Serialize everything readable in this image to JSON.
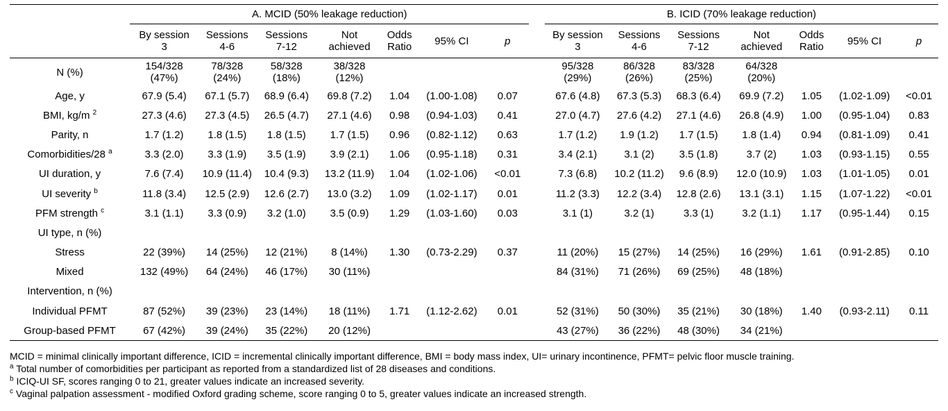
{
  "groups": {
    "a": "A. MCID (50% leakage reduction)",
    "b": "B. ICID (70% leakage reduction)"
  },
  "col_headers": {
    "c1": [
      "By session",
      "3"
    ],
    "c2": [
      "Sessions",
      "4-6"
    ],
    "c3": [
      "Sessions",
      "7-12"
    ],
    "c4": [
      "Not",
      "achieved"
    ],
    "or": [
      "Odds",
      "Ratio"
    ],
    "ci": "95% CI",
    "p": "p"
  },
  "rows": {
    "n": {
      "label": "N (%)",
      "a": [
        [
          "154/328",
          "(47%)"
        ],
        [
          "78/328",
          "(24%)"
        ],
        [
          "58/328",
          "(18%)"
        ],
        [
          "38/328",
          "(12%)"
        ]
      ],
      "b": [
        [
          "95/328",
          "(29%)"
        ],
        [
          "86/328",
          "(26%)"
        ],
        [
          "83/328",
          "(25%)"
        ],
        [
          "64/328",
          "(20%)"
        ]
      ]
    },
    "age": {
      "label": "Age, y",
      "a": [
        "67.9 (5.4)",
        "67.1 (5.7)",
        "68.9 (6.4)",
        "69.8 (7.2)",
        "1.04",
        "(1.00-1.08)",
        "0.07"
      ],
      "b": [
        "67.6 (4.8)",
        "67.3 (5.3)",
        "68.3 (6.4)",
        "69.9 (7.2)",
        "1.05",
        "(1.02-1.09)",
        "<0.01"
      ]
    },
    "bmi": {
      "label": "BMI, kg/m",
      "label_sup": "2",
      "a": [
        "27.3 (4.6)",
        "27.3 (4.5)",
        "26.5 (4.7)",
        "27.1 (4.6)",
        "0.98",
        "(0.94-1.03)",
        "0.41"
      ],
      "b": [
        "27.0 (4.7)",
        "27.6 (4.2)",
        "27.1 (4.6)",
        "26.8 (4.9)",
        "1.00",
        "(0.95-1.04)",
        "0.83"
      ]
    },
    "parity": {
      "label": "Parity, n",
      "a": [
        "1.7 (1.2)",
        "1.8 (1.5)",
        "1.8 (1.5)",
        "1.7 (1.5)",
        "0.96",
        "(0.82-1.12)",
        "0.63"
      ],
      "b": [
        "1.7 (1.2)",
        "1.9 (1.2)",
        "1.7 (1.5)",
        "1.8 (1.4)",
        "0.94",
        "(0.81-1.09)",
        "0.41"
      ]
    },
    "comorb": {
      "label": "Comorbidities/28",
      "label_sup": "a",
      "a": [
        "3.3 (2.0)",
        "3.3 (1.9)",
        "3.5 (1.9)",
        "3.9 (2.1)",
        "1.06",
        "(0.95-1.18)",
        "0.31"
      ],
      "b": [
        "3.4 (2.1)",
        "3.1 (2)",
        "3.5 (1.8)",
        "3.7 (2)",
        "1.03",
        "(0.93-1.15)",
        "0.55"
      ]
    },
    "uidur": {
      "label": "UI duration, y",
      "a": [
        "7.6 (7.4)",
        "10.9 (11.4)",
        "10.4 (9.3)",
        "13.2 (11.9)",
        "1.04",
        "(1.02-1.06)",
        "<0.01"
      ],
      "b": [
        "7.3 (6.8)",
        "10.2 (11.2)",
        "9.6 (8.9)",
        "12.0 (10.9)",
        "1.03",
        "(1.01-1.05)",
        "0.01"
      ]
    },
    "uisev": {
      "label": "UI severity",
      "label_sup": "b",
      "a": [
        "11.8 (3.4)",
        "12.5 (2.9)",
        "12.6 (2.7)",
        "13.0 (3.2)",
        "1.09",
        "(1.02-1.17)",
        "0.01"
      ],
      "b": [
        "11.2 (3.3)",
        "12.2 (3.4)",
        "12.8 (2.6)",
        "13.1 (3.1)",
        "1.15",
        "(1.07-1.22)",
        "<0.01"
      ]
    },
    "pfm": {
      "label": "PFM strength",
      "label_sup": "c",
      "a": [
        "3.1 (1.1)",
        "3.3 (0.9)",
        "3.2 (1.0)",
        "3.5 (0.9)",
        "1.29",
        "(1.03-1.60)",
        "0.03"
      ],
      "b": [
        "3.1 (1)",
        "3.2 (1)",
        "3.3 (1)",
        "3.2 (1.1)",
        "1.17",
        "(0.95-1.44)",
        "0.15"
      ]
    },
    "uitype": {
      "label": "UI type, n (%)"
    },
    "stress": {
      "label": "Stress",
      "a": [
        "22 (39%)",
        "14 (25%)",
        "12 (21%)",
        "8 (14%)",
        "1.30",
        "(0.73-2.29)",
        "0.37"
      ],
      "b": [
        "11 (20%)",
        "15 (27%)",
        "14 (25%)",
        "16 (29%)",
        "1.61",
        "(0.91-2.85)",
        "0.10"
      ]
    },
    "mixed": {
      "label": "Mixed",
      "a": [
        "132 (49%)",
        "64 (24%)",
        "46 (17%)",
        "30 (11%)",
        "",
        "",
        ""
      ],
      "b": [
        "84 (31%)",
        "71 (26%)",
        "69 (25%)",
        "48 (18%)",
        "",
        "",
        ""
      ]
    },
    "interv": {
      "label": "Intervention, n (%)"
    },
    "indiv": {
      "label": "Individual PFMT",
      "a": [
        "87 (52%)",
        "39 (23%)",
        "23 (14%)",
        "18 (11%)",
        "1.71",
        "(1.12-2.62)",
        "0.01"
      ],
      "b": [
        "52 (31%)",
        "50 (30%)",
        "35 (21%)",
        "30 (18%)",
        "1.40",
        "(0.93-2.11)",
        "0.11"
      ]
    },
    "group": {
      "label": "Group-based PFMT",
      "a": [
        "67 (42%)",
        "39 (24%)",
        "35 (22%)",
        "20 (12%)",
        "",
        "",
        ""
      ],
      "b": [
        "43 (27%)",
        "36 (22%)",
        "48 (30%)",
        "34 (21%)",
        "",
        "",
        ""
      ]
    }
  },
  "notes": {
    "abbrev": "MCID = minimal clinically important difference, ICID = incremental clinically important difference, BMI = body mass index, UI= urinary incontinence, PFMT= pelvic floor muscle training.",
    "a": {
      "mark": "a",
      "text": "Total number of comorbidities per participant as reported from a standardized list of 28 diseases and conditions."
    },
    "b": {
      "mark": "b",
      "text": "ICIQ-UI SF, scores ranging 0 to 21, greater values indicate an increased severity."
    },
    "c": {
      "mark": "c",
      "text": "Vaginal palpation assessment - modified Oxford grading scheme, score ranging 0 to 5, greater values indicate an increased strength."
    }
  }
}
